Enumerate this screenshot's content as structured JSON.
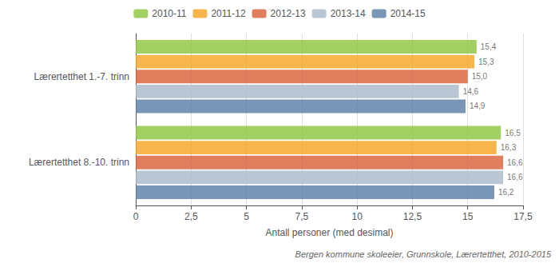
{
  "chart_data": {
    "type": "bar",
    "orientation": "horizontal",
    "categories": [
      "Lærertetthet 1.-7. trinn",
      "Lærertetthet 8.-10. trinn"
    ],
    "series": [
      {
        "name": "2010-11",
        "color": "#8DC63F",
        "values": [
          15.4,
          16.5
        ],
        "value_labels": [
          "15,4",
          "16,5"
        ]
      },
      {
        "name": "2011-12",
        "color": "#F5A623",
        "values": [
          15.3,
          16.3
        ],
        "value_labels": [
          "15,3",
          "16,3"
        ]
      },
      {
        "name": "2012-13",
        "color": "#D9623B",
        "values": [
          15.0,
          16.6
        ],
        "value_labels": [
          "15,0",
          "16,6"
        ]
      },
      {
        "name": "2013-14",
        "color": "#AABBCC",
        "values": [
          14.6,
          16.6
        ],
        "value_labels": [
          "14,6",
          "16,6"
        ]
      },
      {
        "name": "2014-15",
        "color": "#5B7FA6",
        "values": [
          14.9,
          16.2
        ],
        "value_labels": [
          "14,9",
          "16,2"
        ]
      }
    ],
    "xlabel": "Antall personer (med desimal)",
    "xlim": [
      0,
      17.5
    ],
    "xticks": [
      0,
      {
        "value": 2.5,
        "label": "2,5"
      },
      5,
      {
        "value": 7.5,
        "label": "7,5"
      },
      10,
      {
        "value": 12.5,
        "label": "12,5"
      },
      15,
      {
        "value": 17.5,
        "label": "17,5"
      }
    ],
    "grid": true,
    "legend": "top",
    "data_labels": true,
    "annotation": "Bergen kommune skoleeier, Grunnskole, Lærertetthet, 2010-2015"
  }
}
